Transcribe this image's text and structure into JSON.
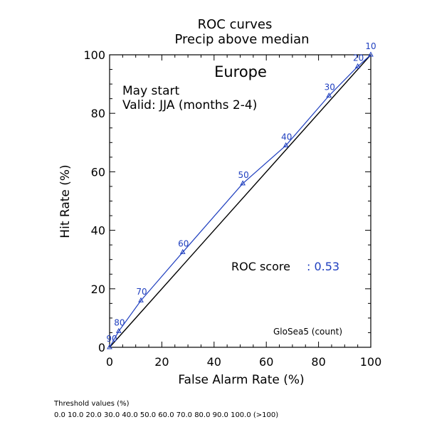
{
  "chart_data": {
    "type": "line",
    "title": "ROC curves",
    "subtitle": "Precip above median",
    "region": "Europe",
    "start_label": "May start",
    "valid_label": "Valid: JJA (months 2-4)",
    "xlabel": "False Alarm Rate (%)",
    "ylabel": "Hit Rate (%)",
    "xlim": [
      0,
      100
    ],
    "ylim": [
      0,
      100
    ],
    "xticks": [
      "0",
      "20",
      "40",
      "60",
      "80",
      "100"
    ],
    "yticks": [
      "0",
      "20",
      "40",
      "60",
      "80",
      "100"
    ],
    "grid": false,
    "roc_score_label": "ROC score",
    "roc_score_value": ": 0.53",
    "model_label": "GloSea5 (count)",
    "series": [
      {
        "color": "#1f3fbf",
        "points": [
          {
            "x": 0,
            "y": 0,
            "label": "90"
          },
          {
            "x": 3.5,
            "y": 5.5,
            "label": "80"
          },
          {
            "x": 12,
            "y": 16,
            "label": "70"
          },
          {
            "x": 28,
            "y": 32.5,
            "label": "60"
          },
          {
            "x": 51,
            "y": 56,
            "label": "50"
          },
          {
            "x": 67.5,
            "y": 69,
            "label": "40"
          },
          {
            "x": 84,
            "y": 86,
            "label": "30"
          },
          {
            "x": 95,
            "y": 96,
            "label": "20"
          },
          {
            "x": 100,
            "y": 100,
            "label": "10"
          }
        ]
      }
    ],
    "diagonal_color": "#000000"
  },
  "footer": {
    "threshold_title": "Threshold values (%)",
    "threshold_values": "0.0 10.0 20.0 30.0 40.0 50.0 60.0 70.0 80.0 90.0 100.0 (>100)"
  }
}
